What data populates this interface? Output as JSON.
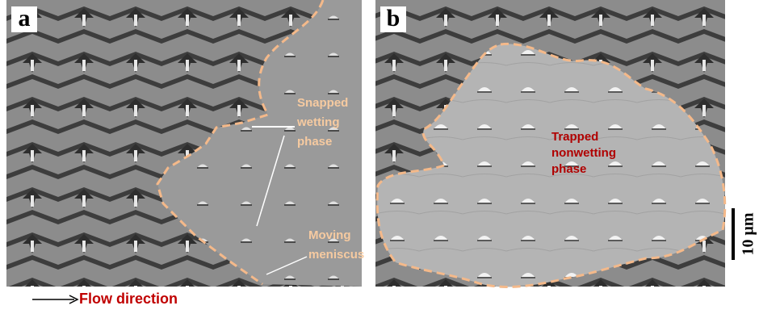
{
  "panels": [
    {
      "label": "a",
      "annotations": [
        {
          "lines": [
            "Snapped",
            "wetting",
            "phase"
          ]
        },
        {
          "lines": [
            "Moving",
            "meniscus"
          ]
        }
      ]
    },
    {
      "label": "b",
      "annotations": [
        {
          "lines": [
            "Trapped",
            "nonwetting",
            "phase"
          ]
        }
      ]
    }
  ],
  "scale_bar": "10 μm",
  "flow_direction": "Flow direction"
}
